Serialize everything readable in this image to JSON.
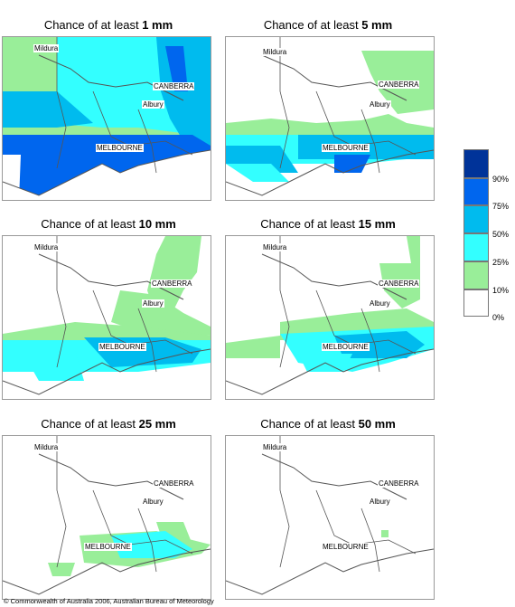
{
  "panels": [
    {
      "prefix": "Chance of at least ",
      "amount": "1 mm"
    },
    {
      "prefix": "Chance of at least ",
      "amount": "5 mm"
    },
    {
      "prefix": "Chance of at least ",
      "amount": "10 mm"
    },
    {
      "prefix": "Chance of at least ",
      "amount": "15 mm"
    },
    {
      "prefix": "Chance of at least ",
      "amount": "25 mm"
    },
    {
      "prefix": "Chance of at least ",
      "amount": "50 mm"
    }
  ],
  "cities": {
    "mildura": "Mildura",
    "canberra": "CANBERRA",
    "albury": "Albury",
    "melbourne": "MELBOURNE"
  },
  "legend": [
    {
      "label": "90%",
      "color": "#003399"
    },
    {
      "label": "75%",
      "color": "#0066ee"
    },
    {
      "label": "50%",
      "color": "#00bbee"
    },
    {
      "label": "25%",
      "color": "#33ffff"
    },
    {
      "label": "10%",
      "color": "#99ee99"
    },
    {
      "label": "0%",
      "color": "#ffffff"
    }
  ],
  "colors": {
    "lightgreen": "#99ee99",
    "cyan": "#33ffff",
    "skyblue": "#00bbee",
    "blue": "#0066ee",
    "navy": "#003399",
    "border": "#555555"
  },
  "copyright": "© Commonwealth of Australia 2006, Australian Bureau of Meteorology"
}
